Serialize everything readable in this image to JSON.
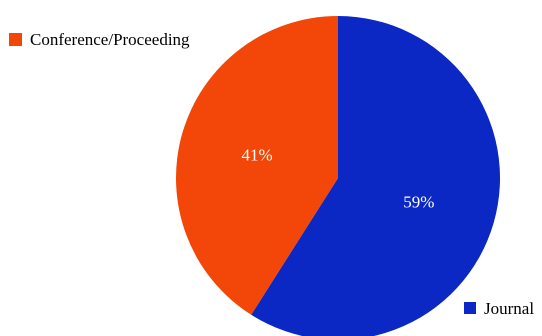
{
  "chart_data": {
    "type": "pie",
    "slices": [
      {
        "label": "Journal",
        "value": 59,
        "display": "59%",
        "color": "#0c28c4"
      },
      {
        "label": "Conference/Proceeding",
        "value": 41,
        "display": "41%",
        "color": "#f24708"
      }
    ],
    "start_angle_deg": 0,
    "direction": "clockwise",
    "legend": [
      {
        "label": "Conference/Proceeding",
        "color": "#f24708",
        "placement": "top-left"
      },
      {
        "label": "Journal",
        "color": "#0c28c4",
        "placement": "bottom-right"
      }
    ]
  }
}
